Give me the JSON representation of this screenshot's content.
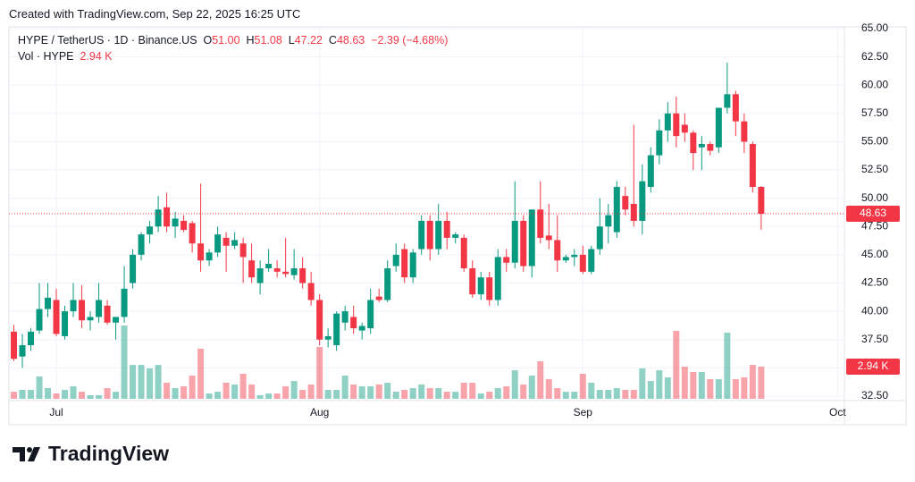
{
  "page": {
    "created": "Created with TradingView.com, Sep 22, 2025 16:25 UTC",
    "brand": "TradingView"
  },
  "chart_data": {
    "type": "candlestick",
    "header": {
      "symbol": "HYPE / TetherUS · 1D · Binance.US",
      "o_label": "O",
      "open": "51.00",
      "h_label": "H",
      "high": "51.08",
      "l_label": "L",
      "low": "47.22",
      "c_label": "C",
      "close": "48.63",
      "change": "−2.39 (−4.68%)",
      "vol_label": "Vol · HYPE",
      "vol": "2.94 K"
    },
    "series": [
      {
        "up_color": "#089981",
        "down_color": "#f23645",
        "open": [
          38.2,
          36.0,
          37.0,
          38.3,
          40.2,
          41.0,
          37.8,
          40.0,
          41.0,
          39.2,
          39.5,
          40.5,
          39.0,
          39.5,
          42.5,
          45.0,
          46.8,
          47.5,
          49.2,
          47.5,
          48.0,
          47.8,
          46.0,
          44.5,
          45.2,
          46.5,
          45.8,
          46.0,
          44.5,
          42.5,
          43.8,
          43.8,
          43.5,
          43.2,
          43.8,
          42.5,
          41.0,
          37.5,
          37.0,
          39.0,
          39.5,
          38.3,
          38.5,
          41.3,
          41.0,
          44.0,
          45.5,
          43.0,
          45.5,
          48.0,
          45.5,
          48.0,
          46.5,
          46.5,
          43.8,
          41.5,
          43.0,
          41.0,
          44.8,
          44.3,
          48.0,
          44.0,
          49.0,
          46.7,
          46.3,
          44.5,
          44.8,
          45.0,
          43.5,
          45.5,
          47.5,
          47.0,
          50.2,
          49.5,
          48.0,
          51.0,
          53.8,
          56.0,
          57.5,
          56.5,
          55.8,
          54.5,
          54.8,
          54.5,
          58.0,
          59.2,
          56.8,
          54.8,
          51.0
        ],
        "high": [
          38.8,
          38.0,
          38.5,
          42.5,
          42.5,
          42.0,
          40.5,
          42.5,
          42.3,
          40.0,
          42.5,
          41.0,
          39.5,
          44.0,
          45.5,
          47.0,
          48.0,
          50.2,
          50.5,
          48.8,
          48.5,
          48.0,
          51.3,
          45.5,
          47.5,
          47.0,
          47.0,
          46.5,
          46.0,
          44.5,
          45.5,
          44.5,
          46.5,
          45.5,
          44.8,
          43.5,
          41.5,
          38.5,
          40.0,
          40.5,
          40.5,
          39.0,
          42.0,
          42.0,
          44.5,
          46.0,
          46.0,
          45.5,
          48.5,
          48.5,
          49.5,
          48.8,
          47.0,
          46.8,
          44.5,
          43.5,
          43.5,
          45.5,
          45.5,
          51.5,
          48.5,
          49.0,
          51.5,
          49.5,
          48.5,
          45.0,
          45.5,
          45.8,
          45.8,
          50.0,
          49.5,
          51.5,
          51.0,
          56.5,
          53.0,
          54.5,
          57.0,
          58.5,
          59.0,
          57.5,
          56.0,
          55.5,
          55.0,
          58.0,
          62.0,
          59.5,
          57.5,
          55.0,
          51.08
        ],
        "low": [
          35.6,
          35.0,
          36.5,
          38.0,
          39.5,
          37.8,
          37.5,
          39.5,
          38.5,
          38.3,
          39.0,
          38.8,
          37.5,
          39.0,
          42.0,
          44.5,
          46.0,
          47.0,
          47.0,
          46.5,
          47.0,
          45.2,
          43.5,
          44.0,
          44.8,
          43.5,
          45.5,
          42.5,
          42.5,
          41.5,
          43.5,
          43.0,
          43.0,
          42.8,
          42.0,
          40.5,
          37.0,
          36.8,
          36.5,
          38.3,
          38.0,
          37.5,
          38.0,
          40.8,
          40.8,
          43.5,
          42.5,
          42.5,
          45.0,
          44.5,
          45.0,
          45.5,
          46.0,
          43.5,
          41.2,
          41.0,
          40.5,
          40.5,
          43.5,
          43.8,
          43.5,
          43.0,
          46.0,
          45.5,
          43.5,
          44.3,
          44.0,
          43.3,
          43.3,
          45.0,
          46.0,
          46.5,
          48.5,
          47.5,
          46.8,
          50.5,
          53.0,
          55.0,
          54.5,
          55.0,
          52.5,
          52.5,
          53.8,
          54.0,
          57.5,
          55.5,
          54.0,
          50.5,
          47.22
        ],
        "close": [
          35.8,
          37.0,
          38.2,
          40.2,
          41.2,
          38.0,
          40.0,
          41.0,
          39.2,
          39.5,
          41.0,
          39.0,
          39.5,
          42.0,
          45.0,
          46.8,
          47.5,
          49.0,
          47.5,
          48.2,
          47.2,
          46.0,
          44.5,
          45.2,
          46.8,
          45.8,
          46.3,
          44.8,
          43.0,
          43.8,
          44.2,
          43.5,
          43.3,
          43.8,
          42.5,
          41.0,
          37.5,
          37.8,
          39.8,
          40.0,
          38.5,
          38.7,
          41.0,
          41.0,
          43.8,
          45.0,
          43.0,
          45.2,
          48.0,
          45.5,
          48.0,
          46.5,
          46.8,
          43.8,
          41.5,
          43.0,
          41.0,
          44.8,
          44.3,
          48.0,
          44.0,
          49.0,
          46.5,
          46.3,
          44.5,
          44.8,
          45.0,
          43.5,
          45.5,
          47.5,
          48.5,
          51.0,
          49.0,
          48.0,
          51.5,
          53.8,
          56.0,
          57.5,
          55.5,
          55.8,
          54.0,
          54.8,
          54.2,
          58.0,
          59.2,
          56.8,
          55.0,
          51.0,
          48.63
        ],
        "volume": [
          0.65,
          0.82,
          0.82,
          2.04,
          0.98,
          0.49,
          0.82,
          1.14,
          0.65,
          0.33,
          0.33,
          0.98,
          0.65,
          6.7,
          3.1,
          3.1,
          2.78,
          3.1,
          1.47,
          0.98,
          1.14,
          2.12,
          4.58,
          0.49,
          0.65,
          1.47,
          1.31,
          2.29,
          1.31,
          0.33,
          0.49,
          0.49,
          1.14,
          1.63,
          0.82,
          1.31,
          4.74,
          0.82,
          0.82,
          2.12,
          1.31,
          1.14,
          1.14,
          1.31,
          1.47,
          0.65,
          0.82,
          0.98,
          1.31,
          0.98,
          0.98,
          0.65,
          0.65,
          1.47,
          1.47,
          0.49,
          0.65,
          0.98,
          1.14,
          2.61,
          1.31,
          2.12,
          3.43,
          1.8,
          0.98,
          0.65,
          0.65,
          2.29,
          1.47,
          0.82,
          0.82,
          0.98,
          0.82,
          0.82,
          2.78,
          1.63,
          2.61,
          1.96,
          6.21,
          2.94,
          2.45,
          2.45,
          1.8,
          1.8,
          6.05,
          1.8,
          1.96,
          3.1,
          2.94
        ]
      }
    ],
    "last_price_label": "48.63",
    "volume_label": "2.94 K",
    "ylim": [
      32.1,
      65.16
    ],
    "yticks": [
      {
        "value": 32.5,
        "label": "32.50"
      },
      {
        "value": 35,
        "label": "35.00"
      },
      {
        "value": 37.5,
        "label": "37.50"
      },
      {
        "value": 40,
        "label": "40.00"
      },
      {
        "value": 42.5,
        "label": "42.50"
      },
      {
        "value": 45,
        "label": "45.00"
      },
      {
        "value": 47.5,
        "label": "47.50"
      },
      {
        "value": 50,
        "label": "50.00"
      },
      {
        "value": 52.5,
        "label": "52.50"
      },
      {
        "value": 55,
        "label": "55.00"
      },
      {
        "value": 57.5,
        "label": "57.50"
      },
      {
        "value": 60,
        "label": "60.00"
      },
      {
        "value": 62.5,
        "label": "62.50"
      },
      {
        "value": 65,
        "label": "65.00"
      }
    ],
    "xlim": [
      -0.58,
      97.8
    ],
    "xticks": [
      {
        "value": 5,
        "label": "Jul"
      },
      {
        "value": 36,
        "label": "Aug"
      },
      {
        "value": 67,
        "label": "Sep"
      },
      {
        "value": 97,
        "label": "Oct"
      }
    ],
    "grid": true
  }
}
